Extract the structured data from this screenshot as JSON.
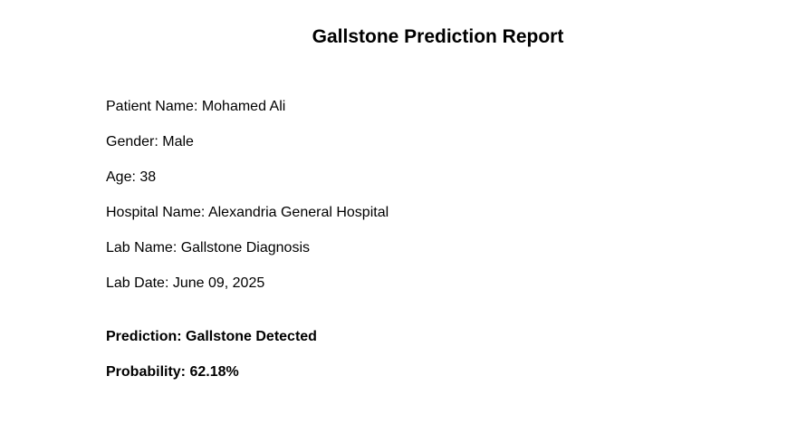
{
  "report": {
    "title": "Gallstone Prediction Report",
    "patient_name": "Patient Name: Mohamed Ali",
    "gender": "Gender: Male",
    "age": "Age: 38",
    "hospital_name": "Hospital Name: Alexandria General Hospital",
    "lab_name": "Lab Name: Gallstone Diagnosis",
    "lab_date": "Lab Date: June 09, 2025",
    "prediction": "Prediction: Gallstone Detected",
    "probability": "Probability: 62.18%"
  }
}
